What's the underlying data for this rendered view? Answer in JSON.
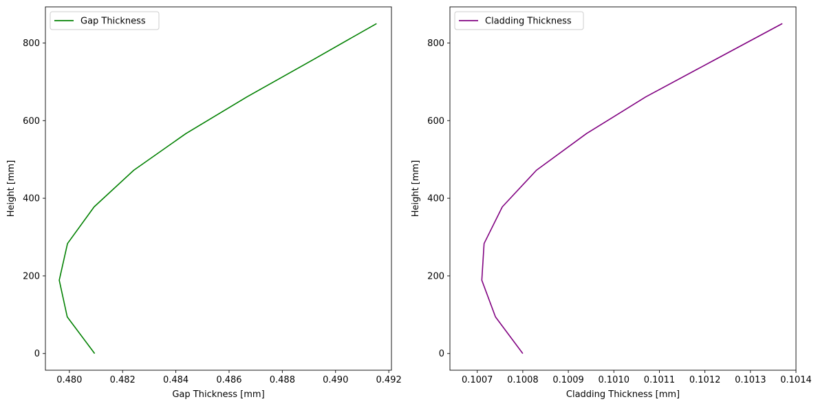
{
  "chart_data": [
    {
      "type": "line",
      "xlabel": "Gap Thickness [mm]",
      "ylabel": "Height [mm]",
      "xlim": [
        0.4791,
        0.4921
      ],
      "ylim": [
        -43,
        893
      ],
      "xticks": [
        0.48,
        0.482,
        0.484,
        0.486,
        0.488,
        0.49,
        0.492
      ],
      "xtick_labels": [
        "0.480",
        "0.482",
        "0.484",
        "0.486",
        "0.488",
        "0.490",
        "0.492"
      ],
      "yticks": [
        0,
        200,
        400,
        600,
        800
      ],
      "ytick_labels": [
        "0",
        "200",
        "400",
        "600",
        "800"
      ],
      "grid": false,
      "legend_position": "top-left",
      "series": [
        {
          "name": "Gap Thickness",
          "color": "#008000",
          "x": [
            0.48095,
            0.47992,
            0.47962,
            0.47993,
            0.48093,
            0.48242,
            0.48438,
            0.48667,
            0.48912,
            0.49154
          ],
          "y": [
            0,
            94.4,
            188.9,
            283.3,
            377.8,
            472.2,
            566.7,
            661.1,
            755.6,
            850
          ]
        }
      ]
    },
    {
      "type": "line",
      "xlabel": "Cladding Thickness [mm]",
      "ylabel": "Height [mm]",
      "xlim": [
        0.10064,
        0.1014
      ],
      "ylim": [
        -43,
        893
      ],
      "xticks": [
        0.1007,
        0.1008,
        0.1009,
        0.101,
        0.1011,
        0.1012,
        0.1013,
        0.1014
      ],
      "xtick_labels": [
        "0.1007",
        "0.1008",
        "0.1009",
        "0.1010",
        "0.1011",
        "0.1012",
        "0.1013",
        "0.1014"
      ],
      "yticks": [
        0,
        200,
        400,
        600,
        800
      ],
      "ytick_labels": [
        "0",
        "200",
        "400",
        "600",
        "800"
      ],
      "grid": false,
      "legend_position": "top-left",
      "series": [
        {
          "name": "Cladding Thickness",
          "color": "#800080",
          "x": [
            0.1008,
            0.10074,
            0.10071,
            0.100715,
            0.100755,
            0.10083,
            0.10094,
            0.10107,
            0.10122,
            0.10137
          ],
          "y": [
            0,
            94.4,
            188.9,
            283.3,
            377.8,
            472.2,
            566.7,
            661.1,
            755.6,
            850
          ]
        }
      ]
    }
  ]
}
